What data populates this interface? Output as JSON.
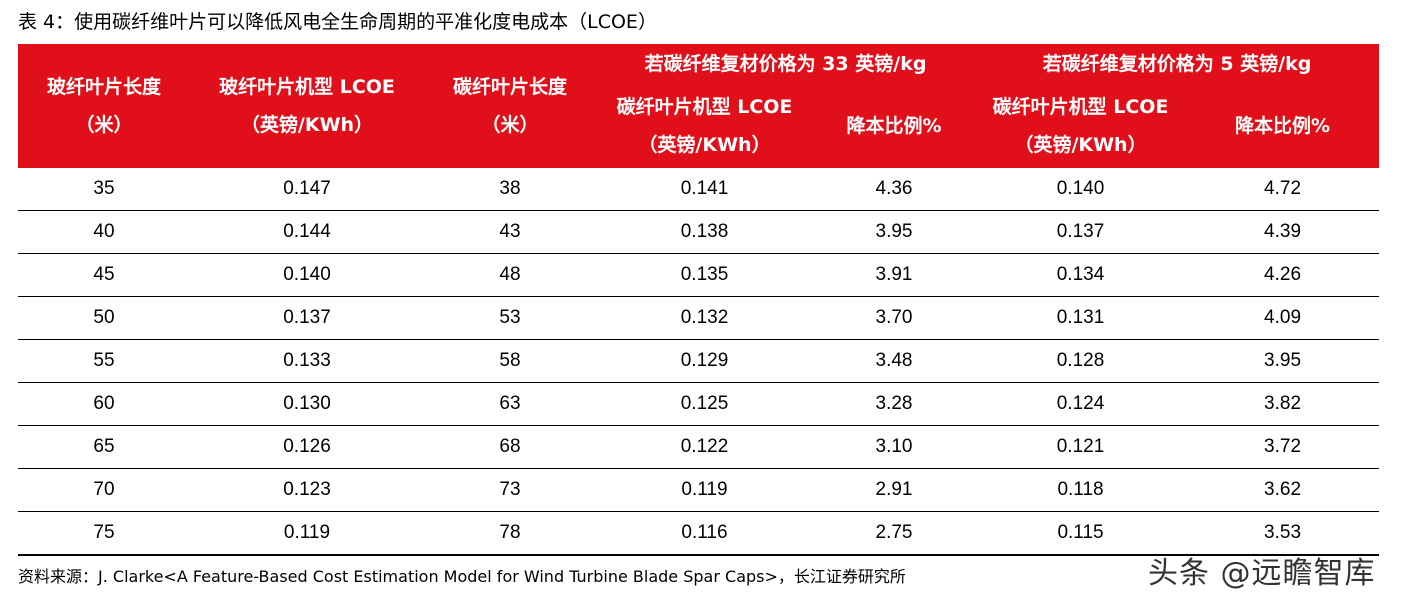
{
  "caption": "表 4：使用碳纤维叶片可以降低风电全生命周期的平准化度电成本（LCOE）",
  "header": {
    "col1": [
      "玻纤叶片长度",
      "（米）"
    ],
    "col2": [
      "玻纤叶片机型 LCOE",
      "（英镑/KWh）"
    ],
    "col3": [
      "碳纤叶片长度",
      "（米）"
    ],
    "group1": "若碳纤维复材价格为 33 英镑/kg",
    "group2": "若碳纤维复材价格为 5 英镑/kg",
    "sub_lcoe": [
      "碳纤叶片机型 LCOE",
      "（英镑/KWh）"
    ],
    "sub_ratio": "降本比例%"
  },
  "rows": [
    [
      "35",
      "0.147",
      "38",
      "0.141",
      "4.36",
      "0.140",
      "4.72"
    ],
    [
      "40",
      "0.144",
      "43",
      "0.138",
      "3.95",
      "0.137",
      "4.39"
    ],
    [
      "45",
      "0.140",
      "48",
      "0.135",
      "3.91",
      "0.134",
      "4.26"
    ],
    [
      "50",
      "0.137",
      "53",
      "0.132",
      "3.70",
      "0.131",
      "4.09"
    ],
    [
      "55",
      "0.133",
      "58",
      "0.129",
      "3.48",
      "0.128",
      "3.95"
    ],
    [
      "60",
      "0.130",
      "63",
      "0.125",
      "3.28",
      "0.124",
      "3.82"
    ],
    [
      "65",
      "0.126",
      "68",
      "0.122",
      "3.10",
      "0.121",
      "3.72"
    ],
    [
      "70",
      "0.123",
      "73",
      "0.119",
      "2.91",
      "0.118",
      "3.62"
    ],
    [
      "75",
      "0.119",
      "78",
      "0.116",
      "2.75",
      "0.115",
      "3.53"
    ]
  ],
  "source": "资料来源：J. Clarke<A Feature-Based Cost Estimation Model for Wind Turbine Blade Spar Caps>，长江证券研究所",
  "watermark": "头条 @远瞻智库",
  "colors": {
    "header_bg": "#e00f1a",
    "header_text": "#ffffff"
  }
}
